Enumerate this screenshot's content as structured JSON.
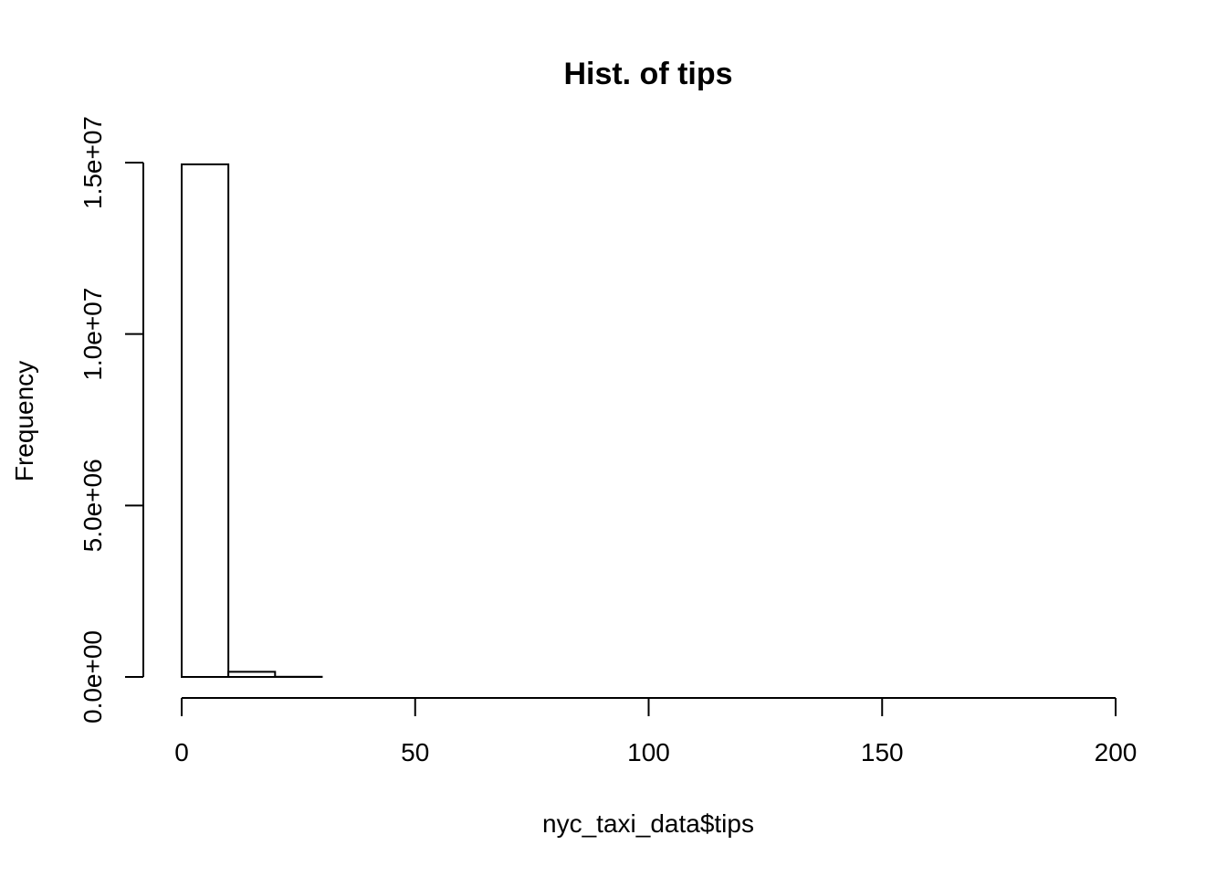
{
  "chart_data": {
    "type": "bar",
    "title": "Hist. of tips",
    "xlabel": "nyc_taxi_data$tips",
    "ylabel": "Frequency",
    "bin_width": 10,
    "bins": [
      {
        "start": 0,
        "end": 10,
        "count": 14950000
      },
      {
        "start": 10,
        "end": 20,
        "count": 150000
      },
      {
        "start": 20,
        "end": 30,
        "count": 5000
      },
      {
        "start": 30,
        "end": 40,
        "count": 0
      },
      {
        "start": 40,
        "end": 50,
        "count": 0
      },
      {
        "start": 50,
        "end": 60,
        "count": 0
      },
      {
        "start": 60,
        "end": 70,
        "count": 0
      },
      {
        "start": 70,
        "end": 80,
        "count": 0
      },
      {
        "start": 80,
        "end": 90,
        "count": 0
      },
      {
        "start": 90,
        "end": 100,
        "count": 0
      },
      {
        "start": 100,
        "end": 110,
        "count": 0
      },
      {
        "start": 110,
        "end": 120,
        "count": 0
      },
      {
        "start": 120,
        "end": 130,
        "count": 0
      },
      {
        "start": 130,
        "end": 140,
        "count": 0
      },
      {
        "start": 140,
        "end": 150,
        "count": 0
      },
      {
        "start": 150,
        "end": 160,
        "count": 0
      },
      {
        "start": 160,
        "end": 170,
        "count": 0
      },
      {
        "start": 170,
        "end": 180,
        "count": 0
      },
      {
        "start": 180,
        "end": 190,
        "count": 0
      },
      {
        "start": 190,
        "end": 200,
        "count": 0
      }
    ],
    "xlim": [
      0,
      200
    ],
    "ylim": [
      0,
      15000000
    ],
    "x_ticks": [
      0,
      50,
      100,
      150,
      200
    ],
    "x_tick_labels": [
      "0",
      "50",
      "100",
      "150",
      "200"
    ],
    "y_ticks": [
      0,
      5000000,
      10000000,
      15000000
    ],
    "y_tick_labels": [
      "0.0e+00",
      "5.0e+06",
      "1.0e+07",
      "1.5e+07"
    ],
    "grid": false,
    "bar_fill": "#ffffff",
    "bar_stroke": "#000000"
  }
}
